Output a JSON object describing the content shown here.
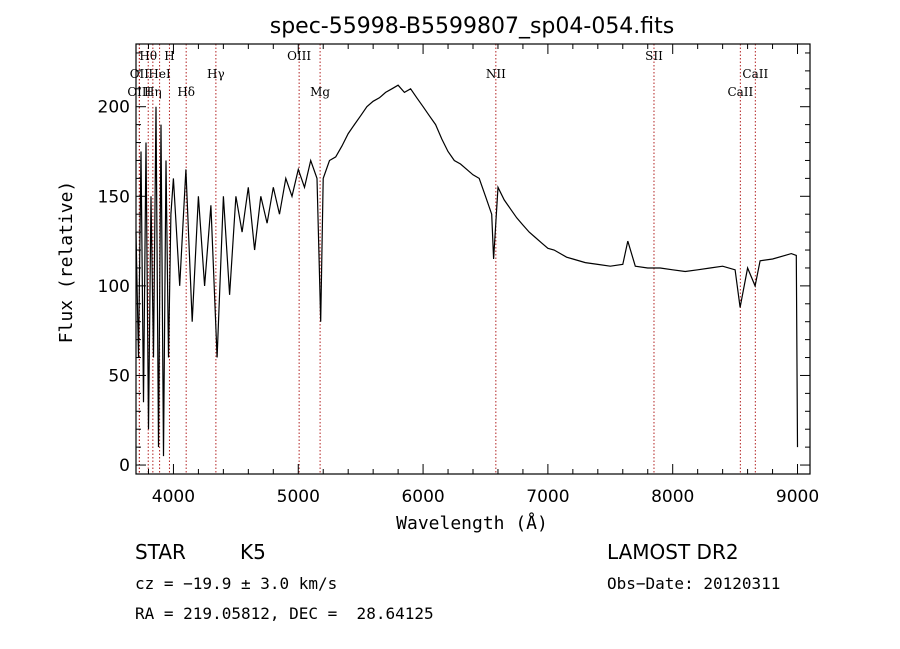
{
  "chart_data": {
    "type": "line",
    "title": "spec-55998-B5599807_sp04-054.fits",
    "xlabel": "Wavelength (Å)",
    "ylabel": "Flux (relative)",
    "xlim": [
      3700,
      9100
    ],
    "ylim": [
      -5,
      235
    ],
    "xticks": [
      4000,
      5000,
      6000,
      7000,
      8000,
      9000
    ],
    "yticks": [
      0,
      50,
      100,
      150,
      200
    ],
    "line_color": "#000000",
    "marker_color": "#b22222",
    "grid": false,
    "series": [
      {
        "x": [
          3700,
          3720,
          3740,
          3760,
          3780,
          3800,
          3820,
          3840,
          3860,
          3880,
          3900,
          3920,
          3940,
          3960,
          3980,
          4000,
          4050,
          4100,
          4150,
          4200,
          4250,
          4300,
          4350,
          4400,
          4450,
          4500,
          4550,
          4600,
          4650,
          4700,
          4750,
          4800,
          4850,
          4900,
          4950,
          5000,
          5050,
          5100,
          5150,
          5180,
          5200,
          5250,
          5300,
          5350,
          5400,
          5450,
          5500,
          5550,
          5600,
          5650,
          5700,
          5750,
          5800,
          5850,
          5900,
          5950,
          6000,
          6050,
          6100,
          6150,
          6200,
          6250,
          6300,
          6350,
          6400,
          6450,
          6500,
          6550,
          6565,
          6600,
          6650,
          6700,
          6750,
          6800,
          6850,
          6900,
          6950,
          7000,
          7050,
          7100,
          7150,
          7200,
          7300,
          7400,
          7500,
          7600,
          7640,
          7700,
          7800,
          7900,
          8000,
          8100,
          8200,
          8300,
          8400,
          8500,
          8540,
          8600,
          8660,
          8700,
          8800,
          8900,
          8950,
          8990,
          9000
        ],
        "y": [
          130,
          60,
          175,
          35,
          180,
          20,
          150,
          60,
          200,
          10,
          190,
          5,
          170,
          60,
          140,
          160,
          100,
          165,
          80,
          150,
          100,
          145,
          60,
          150,
          95,
          150,
          130,
          155,
          120,
          150,
          135,
          155,
          140,
          160,
          150,
          165,
          155,
          170,
          160,
          80,
          160,
          170,
          172,
          178,
          185,
          190,
          195,
          200,
          203,
          205,
          208,
          210,
          212,
          208,
          210,
          205,
          200,
          195,
          190,
          182,
          175,
          170,
          168,
          165,
          162,
          160,
          150,
          140,
          115,
          155,
          148,
          143,
          138,
          134,
          130,
          127,
          124,
          121,
          120,
          118,
          116,
          115,
          113,
          112,
          111,
          112,
          125,
          111,
          110,
          110,
          109,
          108,
          109,
          110,
          111,
          109,
          88,
          110,
          100,
          114,
          115,
          117,
          118,
          117,
          10
        ]
      }
    ],
    "line_markers": [
      {
        "label": "Hθ",
        "x": 3798,
        "row": 0
      },
      {
        "label": "OII",
        "x": 3727,
        "row": 1
      },
      {
        "label": "Hη",
        "x": 3835,
        "row": 2
      },
      {
        "label": "OIII",
        "x": 3727,
        "row": 2
      },
      {
        "label": "HeI",
        "x": 3889,
        "row": 1
      },
      {
        "label": "H",
        "x": 3968,
        "row": 0
      },
      {
        "label": "Hδ",
        "x": 4102,
        "row": 2
      },
      {
        "label": "Hγ",
        "x": 4340,
        "row": 1
      },
      {
        "label": "OIII",
        "x": 5007,
        "row": 0
      },
      {
        "label": "Mg",
        "x": 5175,
        "row": 2
      },
      {
        "label": "NII",
        "x": 6583,
        "row": 1
      },
      {
        "label": "SII",
        "x": 7850,
        "row": 0
      },
      {
        "label": "CaII",
        "x": 8542,
        "row": 2
      },
      {
        "label": "CaII",
        "x": 8662,
        "row": 1
      }
    ]
  },
  "info": {
    "object_class": "STAR",
    "subclass": "K5",
    "survey": "LAMOST DR2",
    "cz": "cz = −19.9 ± 3.0 km/s",
    "obs_date": "Obs−Date: 20120311",
    "coords": "RA = 219.05812, DEC =  28.64125"
  }
}
